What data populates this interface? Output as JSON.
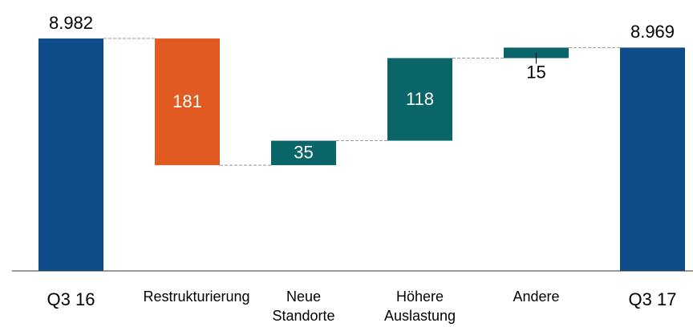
{
  "chart_data": {
    "type": "waterfall",
    "categories": [
      "Q3 16",
      "Restrukturierung",
      "Neue Standorte",
      "Höhere Auslastung",
      "Andere",
      "Q3 17"
    ],
    "values": [
      8982,
      -181,
      35,
      118,
      15,
      8969
    ],
    "value_labels": [
      "8.982",
      "181",
      "35",
      "118",
      "15",
      "8.969"
    ],
    "measures": [
      "total",
      "relative",
      "relative",
      "relative",
      "relative",
      "total"
    ],
    "colors": {
      "total": "#0f4c8a",
      "increase": "#0a6569",
      "decrease": "#e05a22"
    },
    "ylim": [
      8650,
      9037
    ]
  }
}
